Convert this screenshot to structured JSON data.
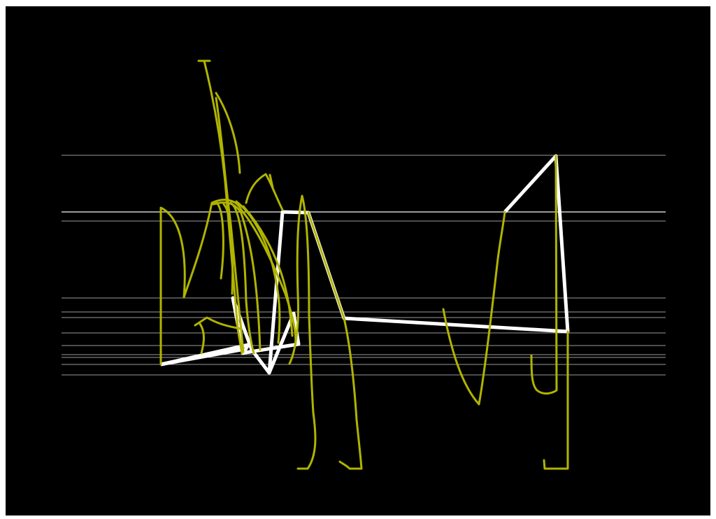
{
  "canvas": {
    "background": "#000000",
    "frame": "#ffffff"
  },
  "colors": {
    "grid": "#9a9a9a",
    "series": "#ffffff",
    "scribble": "#b0b400"
  }
}
